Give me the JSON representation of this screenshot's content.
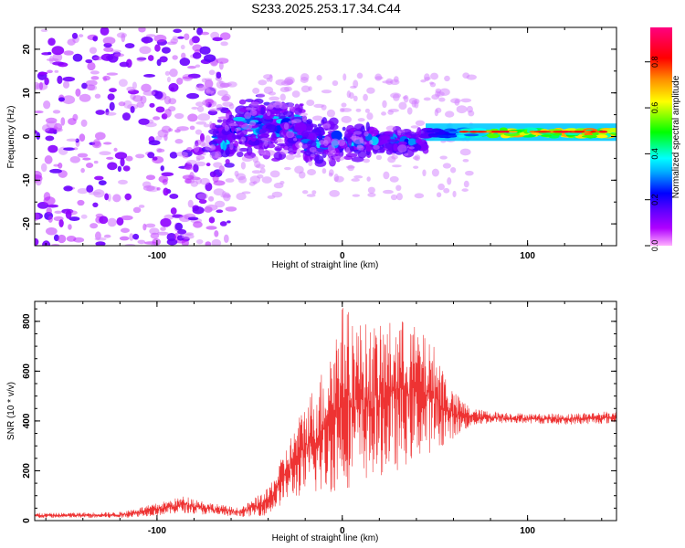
{
  "title": "S233.2025.253.17.34.C44",
  "chart_data": [
    {
      "type": "heatmap",
      "xlabel": "Height of straight line (km)",
      "ylabel": "Frequency (Hz)",
      "xlim": [
        -166,
        148
      ],
      "ylim": [
        -25,
        25
      ],
      "xticks": [
        -100,
        0,
        100
      ],
      "yticks": [
        -20,
        -10,
        0,
        10,
        20
      ],
      "grid": false,
      "colorbar": {
        "label": "Normalized spectral amplitude",
        "range": [
          0,
          0.95
        ],
        "ticks": [
          0.0,
          0.2,
          0.4,
          0.6,
          0.8
        ],
        "colormap": [
          "#ff00ff",
          "#7f00ff",
          "#0000ff",
          "#00ffff",
          "#00ff00",
          "#ffff00",
          "#ff8000",
          "#ff0000",
          "#ff1493"
        ]
      },
      "features": [
        {
          "x": [
            -166,
            -70
          ],
          "freq_spread": [
            -25,
            25
          ],
          "amplitude": 0.08
        },
        {
          "x": [
            -70,
            45
          ],
          "freq_center": 0,
          "freq_spread": [
            -12,
            10
          ],
          "amplitude": 0.2
        },
        {
          "x": [
            45,
            148
          ],
          "freq_center": 1,
          "freq_spread": [
            -1,
            3
          ],
          "amplitude": 0.7
        }
      ]
    },
    {
      "type": "line",
      "xlabel": "Height of straight line (km)",
      "ylabel": "SNR (10 * v/v)",
      "xlim": [
        -166,
        148
      ],
      "ylim": [
        0,
        880
      ],
      "xticks": [
        -100,
        0,
        100
      ],
      "yticks": [
        0,
        200,
        400,
        600,
        800
      ],
      "grid": false,
      "color": "#ee3333",
      "envelope": {
        "x": [
          -166,
          -120,
          -100,
          -85,
          -70,
          -55,
          -40,
          -30,
          -20,
          -10,
          0,
          10,
          20,
          30,
          40,
          50,
          60,
          70,
          80,
          100,
          120,
          148
        ],
        "low": [
          10,
          10,
          20,
          30,
          20,
          15,
          20,
          80,
          100,
          100,
          120,
          150,
          180,
          200,
          250,
          280,
          330,
          380,
          390,
          390,
          385,
          390
        ],
        "high": [
          30,
          35,
          70,
          100,
          70,
          50,
          130,
          300,
          480,
          620,
          870,
          800,
          780,
          820,
          780,
          700,
          520,
          450,
          440,
          430,
          430,
          440
        ]
      }
    }
  ]
}
